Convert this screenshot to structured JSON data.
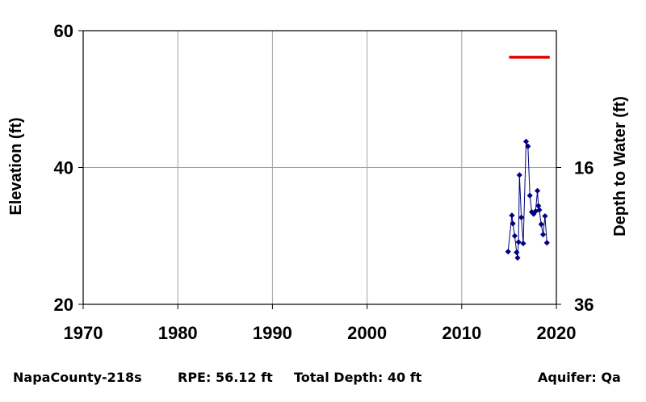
{
  "chart_data": {
    "type": "scatter",
    "title": "",
    "xlabel": "",
    "ylabel": "Elevation (ft)",
    "y2label": "Depth to Water (ft)",
    "xlim": [
      1970,
      2020
    ],
    "ylim": [
      20,
      60
    ],
    "x_ticks": [
      "1970",
      "1980",
      "1990",
      "2000",
      "2010",
      "2020"
    ],
    "y_ticks": [
      "20",
      "40",
      "60"
    ],
    "y2_ticks": [
      "16",
      "36"
    ],
    "y2_tick_positions": [
      40,
      20
    ],
    "grid": true,
    "series": [
      {
        "color": "#000080",
        "marker": "diamond",
        "x": [
          2014.9,
          2015.3,
          2015.4,
          2015.6,
          2015.8,
          2015.9,
          2016.0,
          2016.1,
          2016.3,
          2016.5,
          2016.8,
          2017.0,
          2017.2,
          2017.4,
          2017.6,
          2017.8,
          2018.0,
          2018.1,
          2018.2,
          2018.4,
          2018.6,
          2018.8,
          2019.0
        ],
        "y": [
          27.7,
          33.0,
          31.8,
          30.0,
          27.6,
          26.8,
          29.1,
          38.9,
          32.7,
          28.9,
          43.8,
          43.1,
          35.9,
          33.5,
          33.2,
          33.6,
          36.6,
          34.4,
          33.8,
          31.7,
          30.2,
          32.9,
          29.0
        ]
      }
    ],
    "reference_line": {
      "color": "#e00000",
      "y": 56.12,
      "x": [
        2015.0,
        2019.3
      ]
    }
  },
  "footer": {
    "well_id": "NapaCounty-218s",
    "rpe": "RPE: 56.12 ft",
    "total_depth": "Total Depth: 40 ft",
    "aquifer": "Aquifer: Qa"
  }
}
